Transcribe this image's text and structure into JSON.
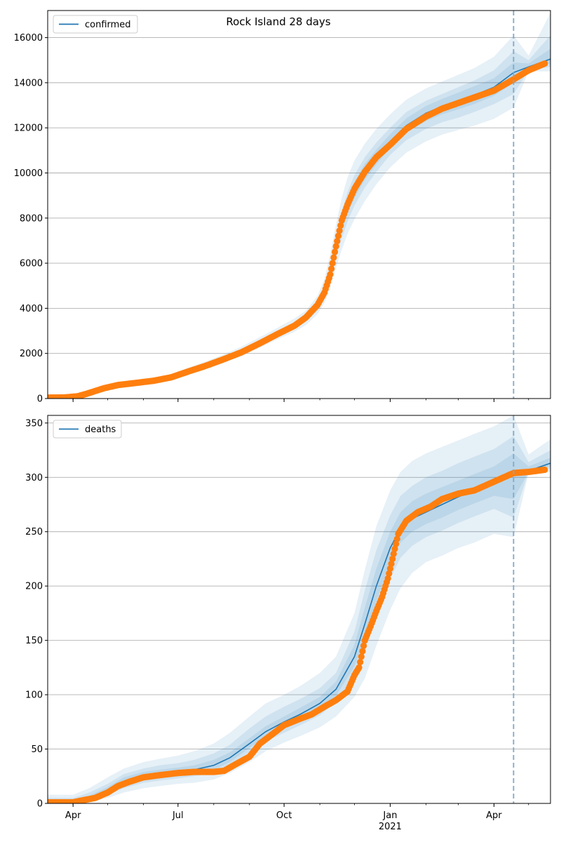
{
  "figure": {
    "title": "Rock Island 28 days"
  },
  "colors": {
    "model": "#1f77b4",
    "observed": "#ff7f0e",
    "band": "#1f77b4",
    "grid": "#b0b0b0",
    "cutoff": "#7fa9c9"
  },
  "chart_data": [
    {
      "type": "line",
      "legend": "confirmed",
      "legend_position": "top-left",
      "grid": "horizontal",
      "x_range": [
        "2020-03-10",
        "2021-05-20"
      ],
      "ylim": [
        0,
        17200
      ],
      "yticks": [
        0,
        2000,
        4000,
        6000,
        8000,
        10000,
        12000,
        14000,
        16000
      ],
      "xticks": [
        {
          "date": "2020-04-01",
          "label": "Apr"
        },
        {
          "date": "2020-07-01",
          "label": "Jul"
        },
        {
          "date": "2020-10-01",
          "label": "Oct"
        },
        {
          "date": "2021-01-01",
          "label": "Jan",
          "sublabel": "2021"
        },
        {
          "date": "2021-04-01",
          "label": "Apr"
        }
      ],
      "forecast_start": "2021-04-18",
      "model": {
        "dates": [
          "2020-03-10",
          "2020-03-25",
          "2020-04-05",
          "2020-04-15",
          "2020-04-25",
          "2020-05-10",
          "2020-05-25",
          "2020-06-10",
          "2020-06-25",
          "2020-07-10",
          "2020-07-25",
          "2020-08-10",
          "2020-08-25",
          "2020-09-10",
          "2020-09-25",
          "2020-10-10",
          "2020-10-20",
          "2020-10-30",
          "2020-11-05",
          "2020-11-10",
          "2020-11-15",
          "2020-11-20",
          "2020-11-25",
          "2020-12-01",
          "2020-12-10",
          "2020-12-20",
          "2021-01-01",
          "2021-01-15",
          "2021-02-01",
          "2021-02-15",
          "2021-03-01",
          "2021-03-15",
          "2021-04-01",
          "2021-04-18",
          "2021-05-01",
          "2021-05-20"
        ],
        "values": [
          40,
          60,
          100,
          260,
          430,
          600,
          690,
          790,
          950,
          1220,
          1470,
          1760,
          2060,
          2460,
          2850,
          3220,
          3560,
          4100,
          4720,
          5560,
          6700,
          7760,
          8520,
          9250,
          10050,
          10700,
          11400,
          12100,
          12650,
          12950,
          13200,
          13450,
          13800,
          14450,
          14700,
          15050
        ],
        "bands": [
          {
            "lower": [
              0,
              0,
              60,
              200,
              340,
              500,
              580,
              680,
              840,
              1100,
              1340,
              1610,
              1880,
              2260,
              2620,
              2960,
              3260,
              3740,
              4250,
              4900,
              5800,
              6600,
              7300,
              7950,
              8750,
              9500,
              10250,
              10900,
              11400,
              11700,
              11900,
              12100,
              12400,
              12900,
              14500,
              14500
            ],
            "upper": [
              150,
              180,
              180,
              340,
              540,
              720,
              820,
              920,
              1080,
              1370,
              1640,
              1960,
              2300,
              2720,
              3130,
              3550,
              3900,
              4550,
              5300,
              6400,
              7700,
              8900,
              9800,
              10550,
              11300,
              11950,
              12600,
              13250,
              13750,
              14050,
              14350,
              14650,
              15150,
              16100,
              15200,
              17100
            ]
          },
          {
            "lower": [
              10,
              20,
              80,
              230,
              380,
              550,
              630,
              730,
              900,
              1160,
              1400,
              1690,
              1970,
              2360,
              2730,
              3080,
              3400,
              3900,
              4450,
              5200,
              6200,
              7100,
              7850,
              8550,
              9350,
              10050,
              10800,
              11450,
              11950,
              12250,
              12450,
              12700,
              13050,
              13500,
              14550,
              14700
            ],
            "upper": [
              80,
              110,
              130,
              300,
              490,
              660,
              760,
              860,
              1010,
              1290,
              1550,
              1850,
              2170,
              2580,
              2980,
              3380,
              3730,
              4320,
              5000,
              5970,
              7200,
              8300,
              9150,
              9900,
              10700,
              11350,
              12000,
              12700,
              13200,
              13500,
              13800,
              14100,
              14550,
              15400,
              15000,
              16100
            ]
          },
          {
            "lower": [
              25,
              40,
              90,
              245,
              405,
              575,
              660,
              760,
              925,
              1190,
              1435,
              1725,
              2015,
              2410,
              2790,
              3150,
              3480,
              4000,
              4580,
              5380,
              6450,
              7430,
              8190,
              8900,
              9700,
              10380,
              11100,
              11780,
              12300,
              12600,
              12820,
              13060,
              13420,
              13980,
              14620,
              14850
            ],
            "upper": [
              55,
              80,
              115,
              280,
              460,
              630,
              725,
              825,
              980,
              1255,
              1510,
              1800,
              2110,
              2515,
              2910,
              3295,
              3645,
              4210,
              4870,
              5760,
              6960,
              8060,
              8860,
              9600,
              10400,
              11030,
              11720,
              12420,
              12970,
              13280,
              13560,
              13850,
              14200,
              14900,
              14850,
              15500
            ]
          }
        ]
      },
      "observed": {
        "dates": [
          "2020-03-10",
          "2020-03-25",
          "2020-04-05",
          "2020-04-12",
          "2020-04-20",
          "2020-04-28",
          "2020-05-10",
          "2020-05-25",
          "2020-06-10",
          "2020-06-25",
          "2020-07-10",
          "2020-07-25",
          "2020-08-10",
          "2020-08-25",
          "2020-09-10",
          "2020-09-25",
          "2020-10-10",
          "2020-10-20",
          "2020-10-30",
          "2020-11-05",
          "2020-11-10",
          "2020-11-15",
          "2020-11-20",
          "2020-11-25",
          "2020-12-01",
          "2020-12-10",
          "2020-12-20",
          "2021-01-01",
          "2021-01-15",
          "2021-02-01",
          "2021-02-15",
          "2021-03-01",
          "2021-03-15",
          "2021-04-01",
          "2021-04-18",
          "2021-05-01",
          "2021-05-15"
        ],
        "values": [
          40,
          50,
          100,
          200,
          330,
          460,
          600,
          690,
          790,
          940,
          1200,
          1450,
          1750,
          2050,
          2450,
          2850,
          3230,
          3600,
          4150,
          4700,
          5500,
          6750,
          7900,
          8600,
          9300,
          10050,
          10700,
          11250,
          11950,
          12500,
          12850,
          13100,
          13350,
          13650,
          14150,
          14550,
          14850
        ]
      }
    },
    {
      "type": "line",
      "legend": "deaths",
      "legend_position": "top-left",
      "grid": "horizontal",
      "x_range": [
        "2020-03-10",
        "2021-05-20"
      ],
      "ylim": [
        0,
        357
      ],
      "yticks": [
        0,
        50,
        100,
        150,
        200,
        250,
        300,
        350
      ],
      "xticks": [
        {
          "date": "2020-04-01",
          "label": "Apr"
        },
        {
          "date": "2020-07-01",
          "label": "Jul"
        },
        {
          "date": "2020-10-01",
          "label": "Oct"
        },
        {
          "date": "2021-01-01",
          "label": "Jan",
          "sublabel": "2021"
        },
        {
          "date": "2021-04-01",
          "label": "Apr"
        }
      ],
      "forecast_start": "2021-04-18",
      "model": {
        "dates": [
          "2020-03-10",
          "2020-04-01",
          "2020-04-15",
          "2020-05-01",
          "2020-05-15",
          "2020-06-01",
          "2020-06-15",
          "2020-07-01",
          "2020-07-15",
          "2020-08-01",
          "2020-08-15",
          "2020-09-01",
          "2020-09-15",
          "2020-10-01",
          "2020-10-15",
          "2020-11-01",
          "2020-11-15",
          "2020-12-01",
          "2020-12-10",
          "2020-12-20",
          "2021-01-01",
          "2021-01-10",
          "2021-01-20",
          "2021-02-01",
          "2021-02-15",
          "2021-03-01",
          "2021-03-15",
          "2021-04-01",
          "2021-04-18",
          "2021-05-01",
          "2021-05-20"
        ],
        "values": [
          1,
          2,
          5,
          12,
          20,
          25,
          27,
          29,
          31,
          35,
          42,
          55,
          66,
          75,
          82,
          92,
          105,
          135,
          165,
          200,
          235,
          253,
          262,
          268,
          275,
          282,
          288,
          295,
          303,
          306,
          313
        ],
        "bands": [
          {
            "lower": [
              0,
              0,
              1,
              5,
              10,
              14,
              16,
              18,
              19,
              22,
              28,
              38,
              48,
              56,
              62,
              70,
              80,
              98,
              115,
              145,
              178,
              198,
              212,
              222,
              228,
              235,
              240,
              248,
              245,
              304,
              305
            ],
            "upper": [
              8,
              8,
              14,
              24,
              32,
              38,
              41,
              44,
              48,
              55,
              65,
              80,
              92,
              100,
              108,
              120,
              135,
              175,
              215,
              255,
              288,
              305,
              315,
              322,
              328,
              334,
              340,
              347,
              357,
              321,
              335
            ]
          },
          {
            "lower": [
              0,
              1,
              3,
              8,
              14,
              19,
              21,
              23,
              25,
              28,
              35,
              47,
              57,
              65,
              72,
              81,
              93,
              117,
              140,
              172,
              207,
              226,
              237,
              245,
              251,
              258,
              264,
              271,
              263,
              305,
              308
            ],
            "upper": [
              5,
              5,
              10,
              18,
              27,
              32,
              35,
              37,
              40,
              46,
              54,
              69,
              80,
              89,
              96,
              106,
              120,
              158,
              196,
              233,
              265,
              283,
              292,
              300,
              306,
              313,
              319,
              326,
              338,
              314,
              325
            ]
          },
          {
            "lower": [
              0,
              1,
              4,
              10,
              17,
              22,
              24,
              26,
              28,
              31,
              38,
              51,
              61,
              70,
              77,
              86,
              99,
              126,
              152,
              186,
              221,
              240,
              250,
              257,
              263,
              270,
              276,
              283,
              280,
              305,
              310
            ],
            "upper": [
              3,
              4,
              7,
              15,
              24,
              29,
              31,
              33,
              35,
              40,
              47,
              60,
              71,
              80,
              88,
              98,
              112,
              146,
              180,
              216,
              250,
              268,
              278,
              285,
              291,
              297,
              303,
              310,
              322,
              310,
              318
            ]
          }
        ]
      },
      "observed": {
        "dates": [
          "2020-03-10",
          "2020-04-01",
          "2020-04-10",
          "2020-04-20",
          "2020-05-01",
          "2020-05-10",
          "2020-05-20",
          "2020-06-01",
          "2020-06-15",
          "2020-07-01",
          "2020-07-15",
          "2020-08-01",
          "2020-08-10",
          "2020-08-20",
          "2020-09-01",
          "2020-09-10",
          "2020-09-20",
          "2020-10-01",
          "2020-10-15",
          "2020-10-25",
          "2020-11-05",
          "2020-11-15",
          "2020-11-25",
          "2020-12-01",
          "2020-12-05",
          "2020-12-10",
          "2020-12-15",
          "2020-12-20",
          "2020-12-25",
          "2020-12-30",
          "2021-01-03",
          "2021-01-08",
          "2021-01-15",
          "2021-01-25",
          "2021-02-05",
          "2021-02-15",
          "2021-03-01",
          "2021-03-15",
          "2021-04-01",
          "2021-04-18",
          "2021-05-01",
          "2021-05-15"
        ],
        "values": [
          1,
          1,
          3,
          5,
          10,
          16,
          20,
          24,
          26,
          28,
          29,
          29,
          30,
          36,
          43,
          55,
          63,
          72,
          78,
          82,
          89,
          95,
          103,
          118,
          125,
          150,
          163,
          177,
          190,
          207,
          225,
          248,
          260,
          268,
          273,
          280,
          285,
          288,
          296,
          304,
          305,
          307
        ]
      }
    }
  ]
}
